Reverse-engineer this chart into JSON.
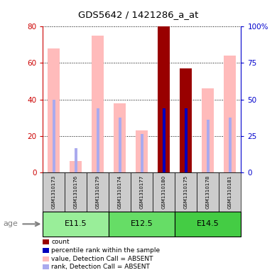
{
  "title": "GDS5642 / 1421286_a_at",
  "samples": [
    "GSM1310173",
    "GSM1310176",
    "GSM1310179",
    "GSM1310174",
    "GSM1310177",
    "GSM1310180",
    "GSM1310175",
    "GSM1310178",
    "GSM1310181"
  ],
  "age_groups": [
    {
      "label": "E11.5",
      "start": 0,
      "end": 3
    },
    {
      "label": "E12.5",
      "start": 3,
      "end": 6
    },
    {
      "label": "E14.5",
      "start": 6,
      "end": 9
    }
  ],
  "value_absent": [
    68,
    6,
    75,
    38,
    23,
    0,
    0,
    46,
    64
  ],
  "rank_absent": [
    40,
    0,
    35,
    30,
    21,
    0,
    0,
    29,
    30
  ],
  "rank_absent_small": [
    0,
    13,
    0,
    0,
    0,
    0,
    0,
    0,
    0
  ],
  "count_present": [
    0,
    0,
    0,
    0,
    0,
    80,
    57,
    0,
    0
  ],
  "rank_present": [
    0,
    0,
    0,
    0,
    0,
    35,
    35,
    0,
    0
  ],
  "ylim_left": [
    0,
    80
  ],
  "ylim_right": [
    0,
    100
  ],
  "yticks_left": [
    0,
    20,
    40,
    60,
    80
  ],
  "ytick_labels_left": [
    "0",
    "20",
    "40",
    "60",
    "80"
  ],
  "yticks_right": [
    0,
    25,
    50,
    75,
    100
  ],
  "ytick_labels_right": [
    "0",
    "25",
    "50",
    "75",
    "100%"
  ],
  "color_value_absent": "#ffbbbb",
  "color_rank_absent": "#aaaaee",
  "color_count_present": "#990000",
  "color_rank_present": "#0000bb",
  "left_axis_color": "#cc0000",
  "right_axis_color": "#0000cc",
  "age_group_colors": [
    "#99ee99",
    "#66dd66",
    "#44cc44"
  ],
  "bg_color_sample_labels": "#cccccc",
  "legend_items": [
    {
      "color": "#990000",
      "label": "count"
    },
    {
      "color": "#0000bb",
      "label": "percentile rank within the sample"
    },
    {
      "color": "#ffbbbb",
      "label": "value, Detection Call = ABSENT"
    },
    {
      "color": "#aaaaee",
      "label": "rank, Detection Call = ABSENT"
    }
  ]
}
